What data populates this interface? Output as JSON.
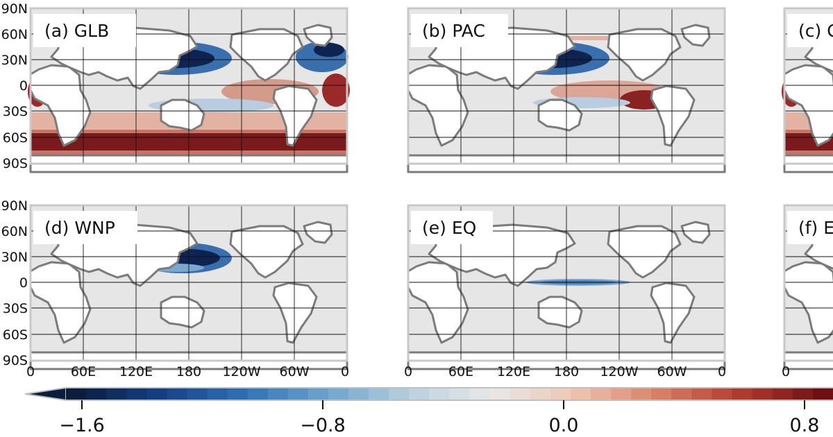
{
  "panels": [
    {
      "id": "a",
      "label": "(a) GLB",
      "region": "global"
    },
    {
      "id": "b",
      "label": "(b) PAC",
      "region": "pacific"
    },
    {
      "id": "c",
      "label": "(c) G",
      "region": "global-partial"
    },
    {
      "id": "d",
      "label": "(d) WNP",
      "region": "western-north-pacific"
    },
    {
      "id": "e",
      "label": "(e) EQ",
      "region": "equatorial-pacific"
    },
    {
      "id": "f",
      "label": "(f) E",
      "region": "partial"
    }
  ],
  "axes": {
    "lat_ticks": [
      "90N",
      "60N",
      "30N",
      "0",
      "30S",
      "60S",
      "90S"
    ],
    "lon_ticks": [
      "0",
      "60E",
      "120E",
      "180",
      "120W",
      "60W",
      "0"
    ]
  },
  "colorbar": {
    "ticks": [
      -1.6,
      -0.8,
      0.0,
      0.8
    ],
    "tick_labels": [
      "−1.6",
      "−0.8",
      "0.0",
      "0.8"
    ],
    "colors": [
      "#0b1d3c",
      "#153f84",
      "#2f6fb4",
      "#6aa3cc",
      "#b7cfdd",
      "#e9e9e9",
      "#efc6b4",
      "#d98268",
      "#b23b2e",
      "#6e0f14"
    ]
  }
}
